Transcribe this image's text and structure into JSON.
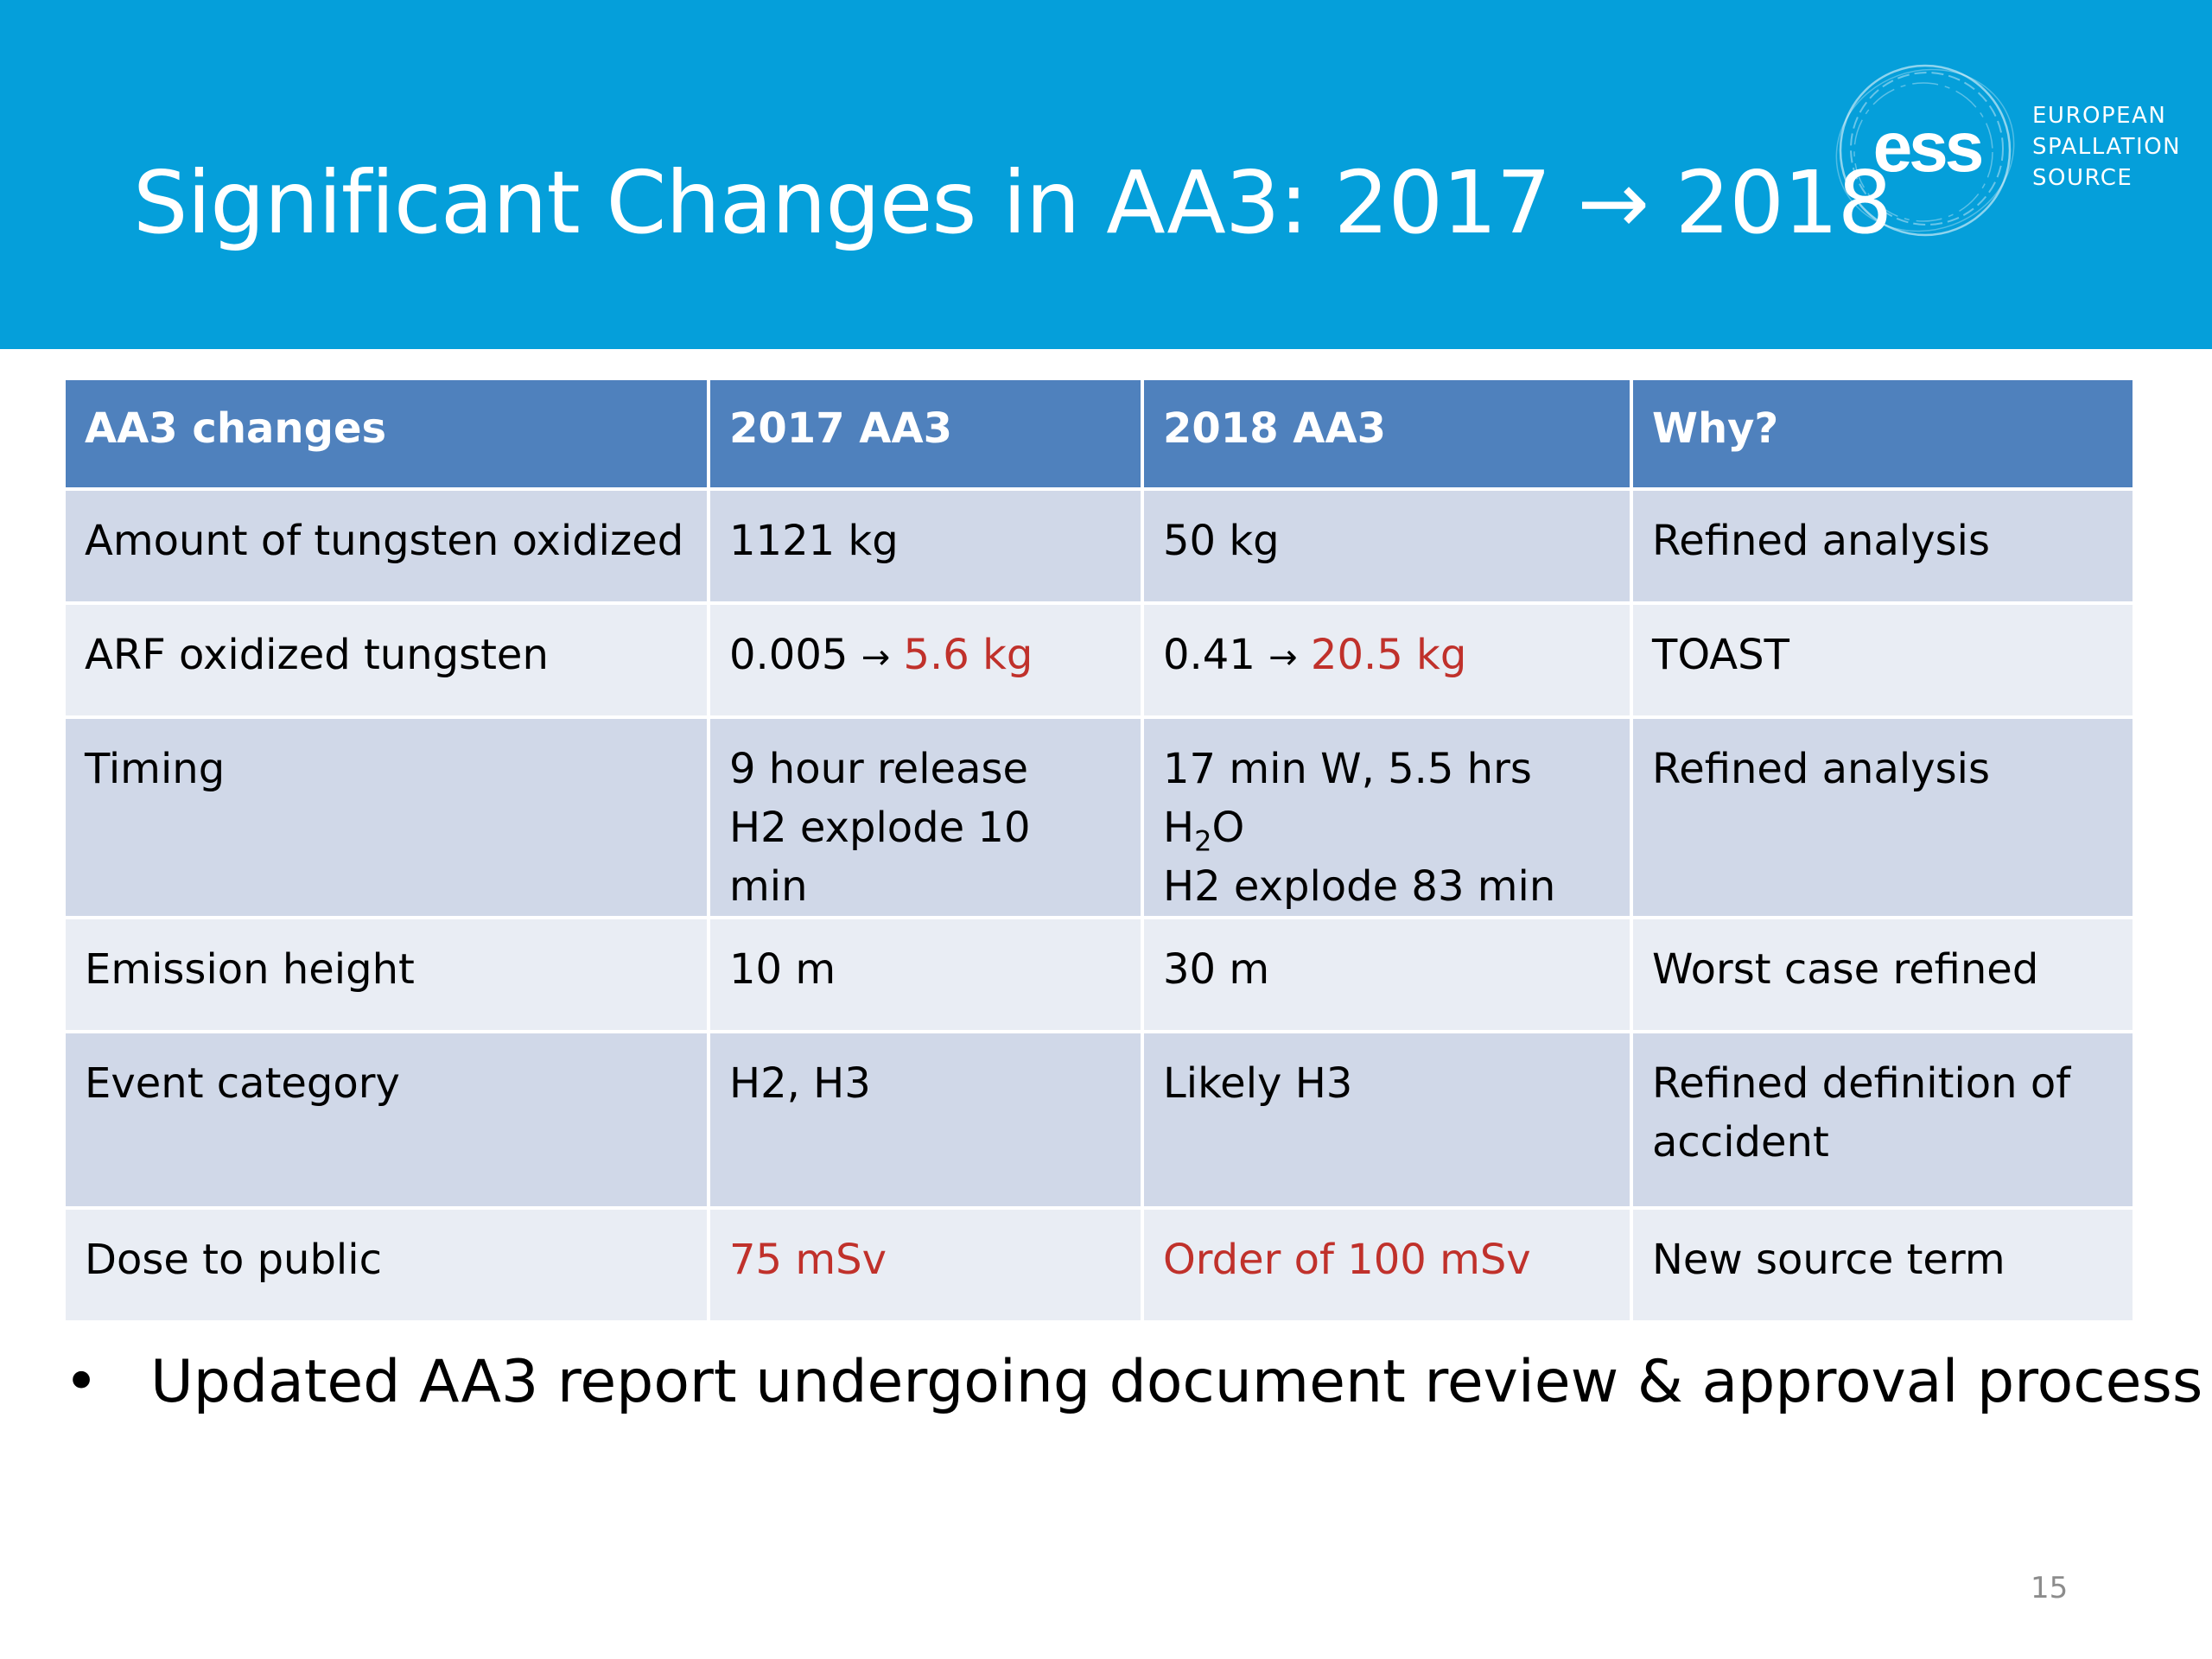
{
  "slide": {
    "title": "Significant Changes in AA3: 2017 → 2018",
    "logo": {
      "mark": "ess",
      "line1": "EUROPEAN",
      "line2": "SPALLATION",
      "line3": "SOURCE"
    },
    "table": {
      "headers": [
        "AA3 changes",
        "2017 AA3",
        "2018 AA3",
        "Why?"
      ],
      "rows": [
        {
          "change": "Amount of tungsten oxidized",
          "y2017": "1121 kg",
          "y2018": "50 kg",
          "why": "Refined analysis"
        },
        {
          "change": "ARF oxidized tungsten",
          "y2017_a": "0.005",
          "y2017_arrow": "→",
          "y2017_b": "5.6 kg",
          "y2018_a": "0.41",
          "y2018_arrow": "→",
          "y2018_b": "20.5 kg",
          "why": "TOAST"
        },
        {
          "change": "Timing",
          "y2017_l1": "9 hour release",
          "y2017_l2": "H2 explode 10 min",
          "y2018_l1_pre": "17 min W, 5.5 hrs H",
          "y2018_l1_sub": "2",
          "y2018_l1_post": "O",
          "y2018_l2": "H2 explode 83 min",
          "why": "Refined analysis"
        },
        {
          "change": "Emission height",
          "y2017": "10 m",
          "y2018": "30 m",
          "why": "Worst case refined"
        },
        {
          "change": "Event category",
          "y2017": "H2, H3",
          "y2018": "Likely H3",
          "why_l1": "Refined definition of",
          "why_l2": "accident"
        },
        {
          "change": "Dose to public",
          "y2017": "75 mSv",
          "y2018": "Order of 100 mSv",
          "why": "New source term"
        }
      ]
    },
    "bullet": {
      "marker": "•",
      "text": "Updated AA3 report undergoing document review & approval process"
    },
    "page_number": "15",
    "colors": {
      "header_bg": "#059fda",
      "table_header": "#4f81bd",
      "row_dark": "#d0d8e8",
      "row_light": "#e9edf4",
      "highlight_red": "#c0312b"
    }
  }
}
